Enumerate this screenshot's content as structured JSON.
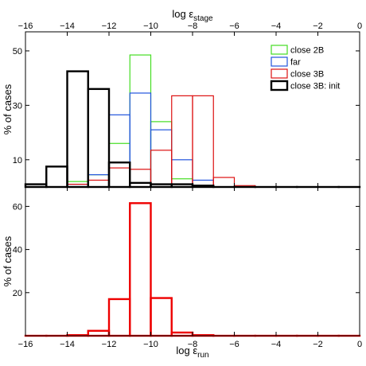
{
  "chart_data": [
    {
      "type": "bar",
      "id": "top",
      "xlabel": "log ε",
      "xlabel_sub": "stage",
      "ylabel": "% of cases",
      "xlim": [
        -16,
        0
      ],
      "ylim": [
        0,
        57
      ],
      "xticks": [
        -16,
        -14,
        -12,
        -10,
        -8,
        -6,
        -4,
        -2,
        0
      ],
      "xtick_labels": [
        "−16",
        "−14",
        "−12",
        "−10",
        "−8",
        "−6",
        "−4",
        "−2",
        "0"
      ],
      "yticks": [
        10,
        30,
        50
      ],
      "ytick_labels": [
        "10",
        "30",
        "50"
      ],
      "xtick_position": "top",
      "legend_position": "top-right",
      "bins": [
        -15.5,
        -14.5,
        -13.5,
        -12.5,
        -11.5,
        -10.5,
        -9.5,
        -8.5,
        -7.5,
        -6.5,
        -5.5,
        -4.5,
        -3.5,
        -2.5,
        -1.5,
        -0.5
      ],
      "series": [
        {
          "name": "close 2B",
          "color": "#44dd22",
          "stroke_width": 1.2,
          "values": [
            0,
            0,
            2,
            4.5,
            16,
            48.5,
            24,
            3,
            0.5,
            0,
            0,
            0,
            0,
            0,
            0,
            0
          ]
        },
        {
          "name": "far",
          "color": "#2255dd",
          "stroke_width": 1.2,
          "values": [
            0,
            0,
            1,
            4.5,
            26.5,
            34.5,
            21,
            10,
            2.5,
            0,
            0,
            0,
            0,
            0,
            0,
            0
          ]
        },
        {
          "name": "close 3B",
          "color": "#dd1111",
          "stroke_width": 1.2,
          "values": [
            0,
            0,
            1,
            2.5,
            7,
            6.5,
            13.5,
            33.5,
            33.5,
            3.5,
            0.5,
            0,
            0,
            0,
            0,
            0
          ]
        },
        {
          "name": "close 3B: init",
          "color": "#000000",
          "stroke_width": 2.4,
          "values": [
            1,
            7.5,
            42.5,
            36,
            9,
            1.5,
            1,
            1,
            0.5,
            0,
            0,
            0,
            0,
            0,
            0,
            0
          ]
        }
      ]
    },
    {
      "type": "bar",
      "id": "bottom",
      "xlabel": "log ε",
      "xlabel_sub": "run",
      "ylabel": "% of cases",
      "xlim": [
        -16,
        0
      ],
      "ylim": [
        0,
        69
      ],
      "xticks": [
        -16,
        -14,
        -12,
        -10,
        -8,
        -6,
        -4,
        -2,
        0
      ],
      "xtick_labels": [
        "−16",
        "−14",
        "−12",
        "−10",
        "−8",
        "−6",
        "−4",
        "−2",
        "0"
      ],
      "yticks": [
        20,
        40,
        60
      ],
      "ytick_labels": [
        "20",
        "40",
        "60"
      ],
      "xtick_position": "bottom",
      "bins": [
        -15.5,
        -14.5,
        -13.5,
        -12.5,
        -11.5,
        -10.5,
        -9.5,
        -8.5,
        -7.5,
        -6.5,
        -5.5,
        -4.5,
        -3.5,
        -2.5,
        -1.5,
        -0.5
      ],
      "series": [
        {
          "name": "",
          "color": "#ee0000",
          "stroke_width": 2.4,
          "values": [
            0,
            0,
            0.3,
            2.3,
            17,
            61.5,
            17.5,
            1.5,
            0.3,
            0,
            0,
            0,
            0,
            0,
            0,
            0
          ]
        }
      ]
    }
  ]
}
